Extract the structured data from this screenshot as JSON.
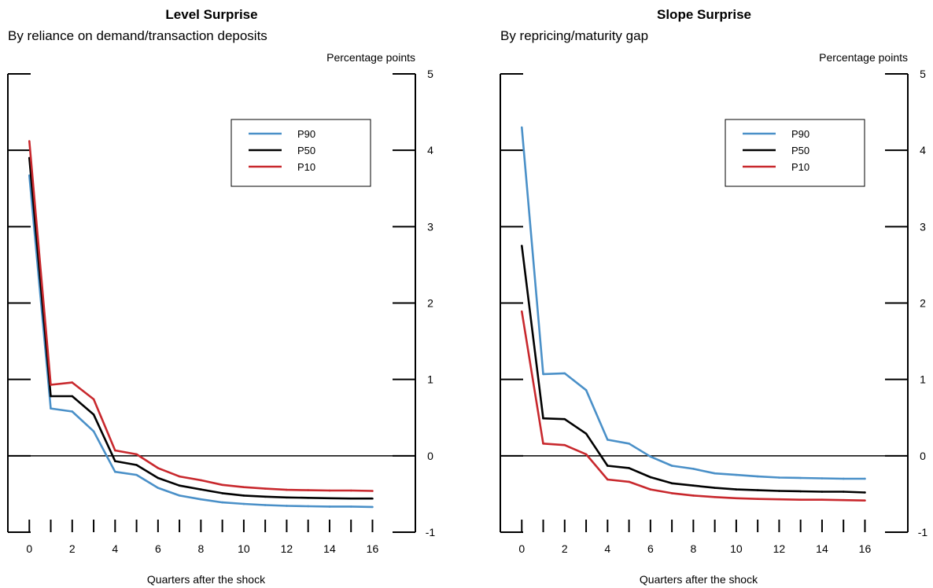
{
  "chart_data": [
    {
      "type": "line",
      "title": "Level Surprise",
      "subtitle": "By reliance on demand/transaction deposits",
      "ylabel": "Percentage points",
      "xlabel": "Quarters after the shock",
      "xlim": [
        -1,
        18
      ],
      "ylim": [
        -1,
        5
      ],
      "x_ticks": [
        0,
        2,
        4,
        6,
        8,
        10,
        12,
        14,
        16
      ],
      "y_ticks": [
        -1,
        0,
        1,
        2,
        3,
        4,
        5
      ],
      "legend_position": "top-right",
      "grid": false,
      "x": [
        0,
        1,
        2,
        3,
        4,
        5,
        6,
        7,
        8,
        9,
        10,
        11,
        12,
        13,
        14,
        15,
        16
      ],
      "series": [
        {
          "name": "P90",
          "color": "#4a90c8",
          "values": [
            3.67,
            0.62,
            0.58,
            0.32,
            -0.21,
            -0.25,
            -0.42,
            -0.52,
            -0.57,
            -0.61,
            -0.63,
            -0.645,
            -0.655,
            -0.66,
            -0.665,
            -0.665,
            -0.67
          ]
        },
        {
          "name": "P50",
          "color": "#000000",
          "values": [
            3.9,
            0.78,
            0.78,
            0.54,
            -0.07,
            -0.12,
            -0.29,
            -0.39,
            -0.44,
            -0.49,
            -0.52,
            -0.535,
            -0.545,
            -0.55,
            -0.555,
            -0.56,
            -0.56
          ]
        },
        {
          "name": "P10",
          "color": "#c8282d",
          "values": [
            4.12,
            0.93,
            0.96,
            0.74,
            0.07,
            0.02,
            -0.16,
            -0.27,
            -0.32,
            -0.38,
            -0.41,
            -0.43,
            -0.445,
            -0.45,
            -0.455,
            -0.455,
            -0.46
          ]
        }
      ]
    },
    {
      "type": "line",
      "title": "Slope Surprise",
      "subtitle": "By repricing/maturity gap",
      "ylabel": "Percentage points",
      "xlabel": "Quarters after the shock",
      "xlim": [
        -1,
        18
      ],
      "ylim": [
        -1,
        5
      ],
      "x_ticks": [
        0,
        2,
        4,
        6,
        8,
        10,
        12,
        14,
        16
      ],
      "y_ticks": [
        -1,
        0,
        1,
        2,
        3,
        4,
        5
      ],
      "legend_position": "top-right",
      "grid": false,
      "x": [
        0,
        1,
        2,
        3,
        4,
        5,
        6,
        7,
        8,
        9,
        10,
        11,
        12,
        13,
        14,
        15,
        16
      ],
      "series": [
        {
          "name": "P90",
          "color": "#4a90c8",
          "values": [
            4.3,
            1.07,
            1.08,
            0.86,
            0.21,
            0.16,
            -0.01,
            -0.13,
            -0.17,
            -0.23,
            -0.25,
            -0.27,
            -0.285,
            -0.29,
            -0.295,
            -0.3,
            -0.3
          ]
        },
        {
          "name": "P50",
          "color": "#000000",
          "values": [
            2.75,
            0.49,
            0.48,
            0.29,
            -0.13,
            -0.16,
            -0.28,
            -0.36,
            -0.39,
            -0.42,
            -0.44,
            -0.45,
            -0.46,
            -0.465,
            -0.47,
            -0.47,
            -0.48
          ]
        },
        {
          "name": "P10",
          "color": "#c8282d",
          "values": [
            1.89,
            0.16,
            0.14,
            0.02,
            -0.31,
            -0.34,
            -0.44,
            -0.49,
            -0.52,
            -0.54,
            -0.555,
            -0.565,
            -0.57,
            -0.575,
            -0.575,
            -0.58,
            -0.585
          ]
        }
      ]
    }
  ]
}
